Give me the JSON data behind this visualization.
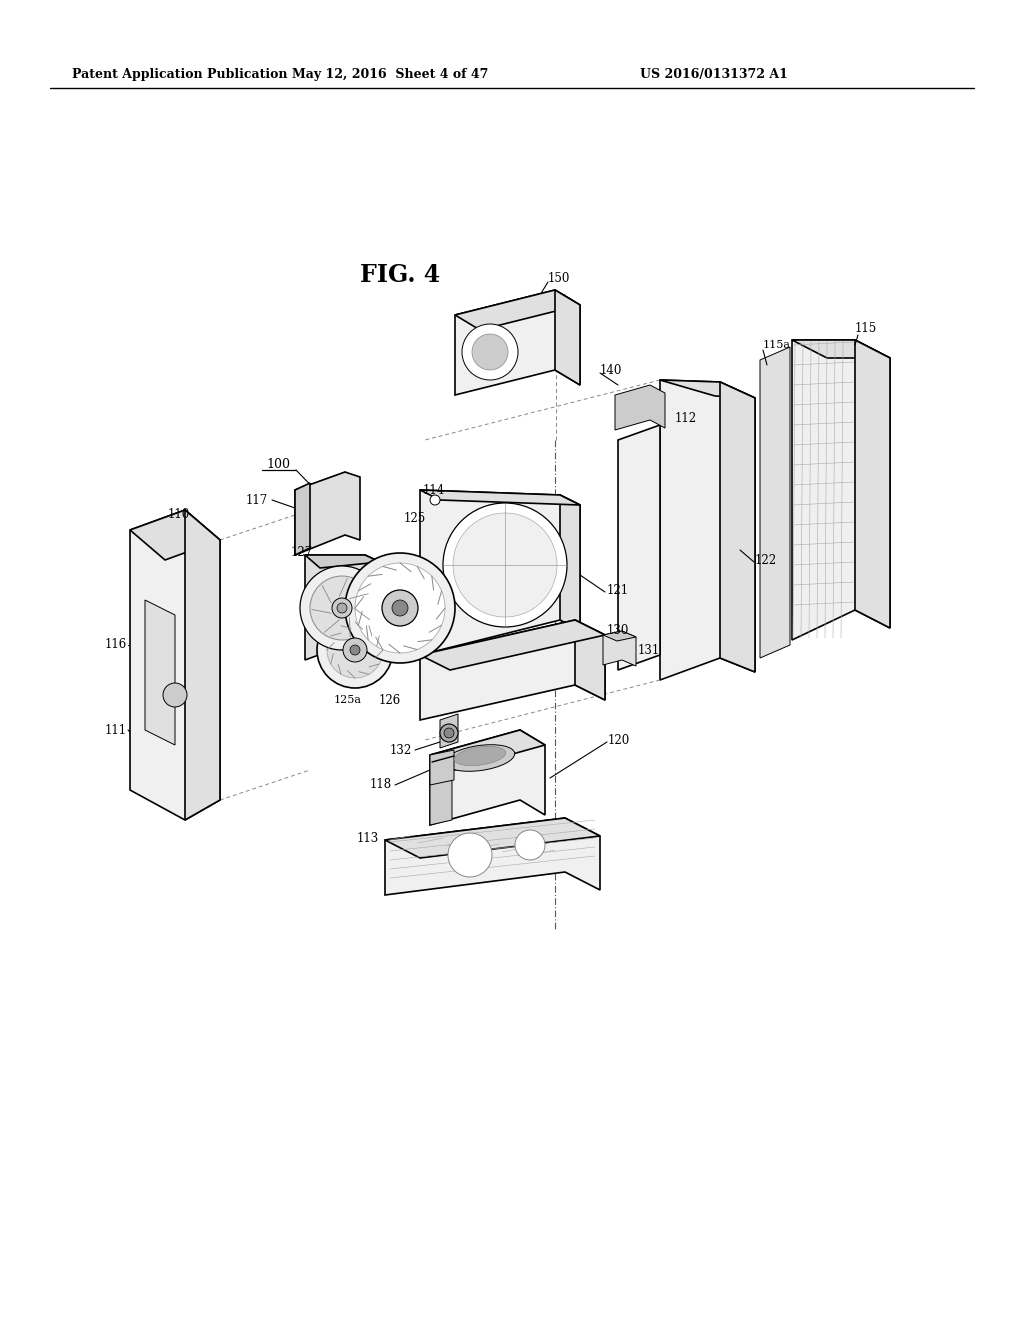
{
  "header_left": "Patent Application Publication",
  "header_middle": "May 12, 2016  Sheet 4 of 47",
  "header_right": "US 2016/0131372 A1",
  "fig_title": "FIG. 4",
  "bg_color": "#ffffff",
  "line_color": "#000000",
  "fig_width": 10.24,
  "fig_height": 13.2,
  "dpi": 100
}
